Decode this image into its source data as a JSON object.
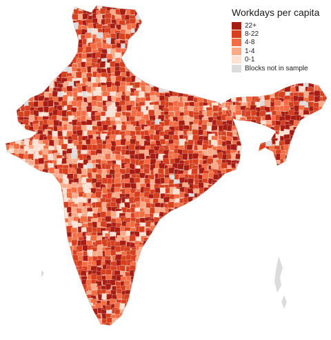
{
  "legend": {
    "title": "Workdays per capita",
    "items": [
      {
        "label": "22+",
        "color": "#a71d14"
      },
      {
        "label": "8-22",
        "color": "#d6401f"
      },
      {
        "label": "4-8",
        "color": "#f26d44"
      },
      {
        "label": "1-4",
        "color": "#f9aa88"
      },
      {
        "label": "0-1",
        "color": "#fde2d4"
      },
      {
        "label": "Blocks not in sample",
        "color": "#dcdcdc"
      }
    ]
  },
  "colors": {
    "background": "#ffffff",
    "no_data": "#dcdcdc",
    "boundary": "#ffffff"
  }
}
